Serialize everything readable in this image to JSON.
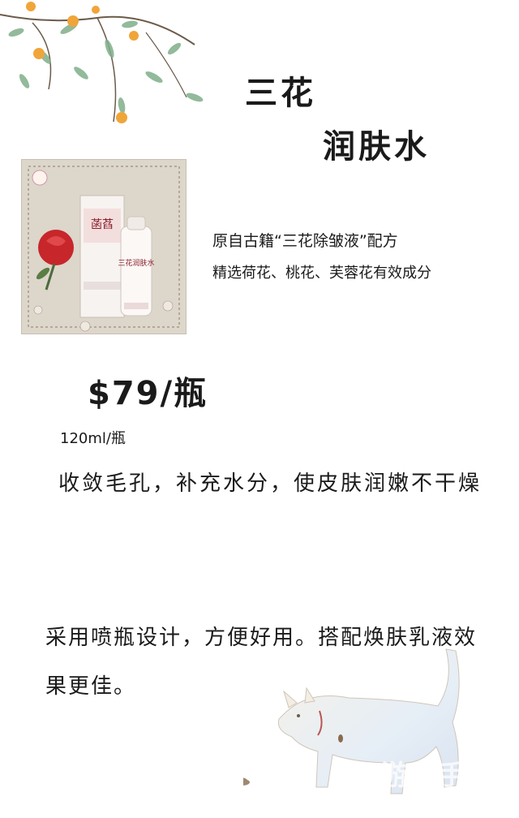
{
  "title": {
    "line1": "三花",
    "line2": "润肤水"
  },
  "product_photo": {
    "brand_mark": "菡萏",
    "bottle_label": "三花润肤水"
  },
  "description": {
    "line1": "原自古籍“三花除皱液”配方",
    "line2": "精选荷花、桃花、芙蓉花有效成分"
  },
  "price": "$79/瓶",
  "volume": "120ml/瓶",
  "effect_text": "收敛毛孔，补充水分，使皮肤润嫩不干燥",
  "usage_text": "采用喷瓶设计，方便好用。搭配焕肤乳液效果更佳。",
  "watermark": "游光手帐",
  "colors": {
    "text": "#1a1a1a",
    "leaf": "#7fae8a",
    "fruit": "#f0a53a",
    "rose": "#c7262b"
  }
}
